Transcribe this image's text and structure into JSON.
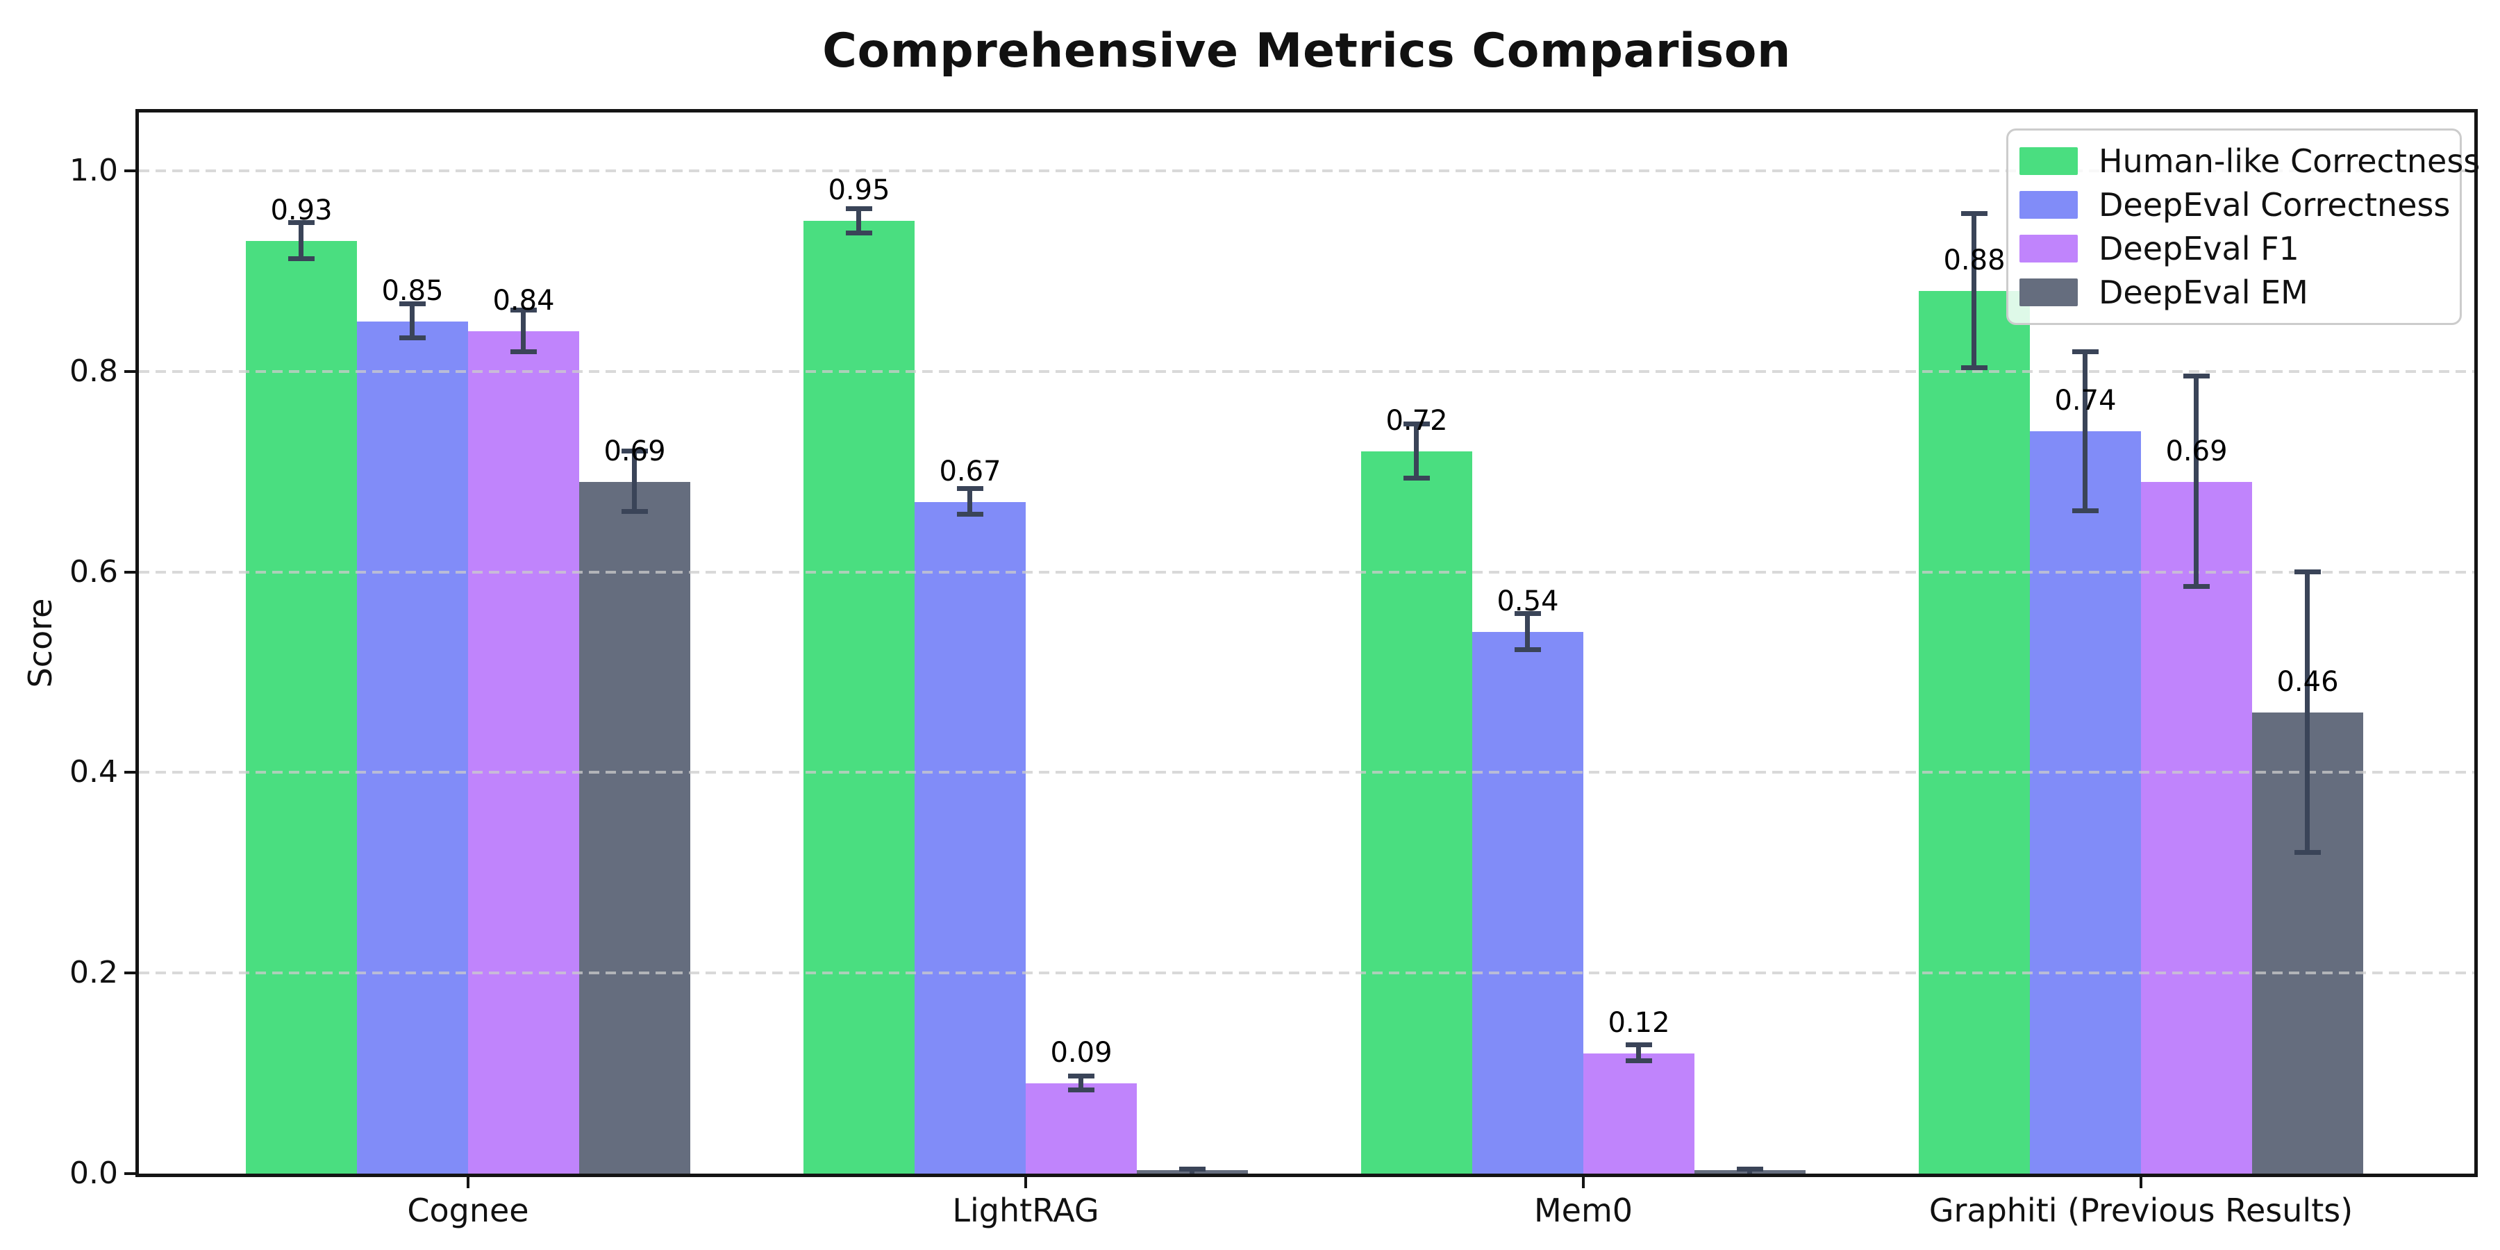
{
  "chart_data": {
    "type": "bar",
    "title": "Comprehensive Metrics Comparison",
    "ylabel": "Score",
    "categories": [
      "Cognee",
      "LightRAG",
      "Mem0",
      "Graphiti (Previous Results)"
    ],
    "series": [
      {
        "name": "Human-like Correctness",
        "color": "#4ade80",
        "values": [
          0.93,
          0.95,
          0.72,
          0.88
        ],
        "errors": [
          0.018,
          0.012,
          0.027,
          0.077
        ],
        "labels": [
          "0.93",
          "0.95",
          "0.72",
          "0.88"
        ]
      },
      {
        "name": "DeepEval Correctness",
        "color": "#818cf8",
        "values": [
          0.85,
          0.67,
          0.54,
          0.74
        ],
        "errors": [
          0.017,
          0.013,
          0.018,
          0.079
        ],
        "labels": [
          "0.85",
          "0.67",
          "0.54",
          "0.74"
        ]
      },
      {
        "name": "DeepEval F1",
        "color": "#c084fc",
        "values": [
          0.84,
          0.09,
          0.12,
          0.69
        ],
        "errors": [
          0.021,
          0.007,
          0.008,
          0.105
        ],
        "labels": [
          "0.84",
          "0.09",
          "0.12",
          "0.69"
        ]
      },
      {
        "name": "DeepEval EM",
        "color": "#656d7e",
        "values": [
          0.69,
          0.0,
          0.0,
          0.46
        ],
        "errors": [
          0.03,
          0.004,
          0.004,
          0.14
        ],
        "labels": [
          "0.69",
          "",
          "",
          "0.46"
        ]
      }
    ],
    "yticks": [
      0.0,
      0.2,
      0.4,
      0.6,
      0.8,
      1.0
    ],
    "ytick_labels": [
      "0.0",
      "0.2",
      "0.4",
      "0.6",
      "0.8",
      "1.0"
    ],
    "ylim": [
      0,
      1.06
    ],
    "grid": {
      "axis": "y",
      "style": "dashed",
      "color": "#cccccc",
      "drawn_over_bars": true
    },
    "legend_position": "upper-right",
    "colors": {
      "error_bar": "#3a4458",
      "spine": "#141414",
      "background": "#ffffff",
      "text": "#111111"
    }
  }
}
